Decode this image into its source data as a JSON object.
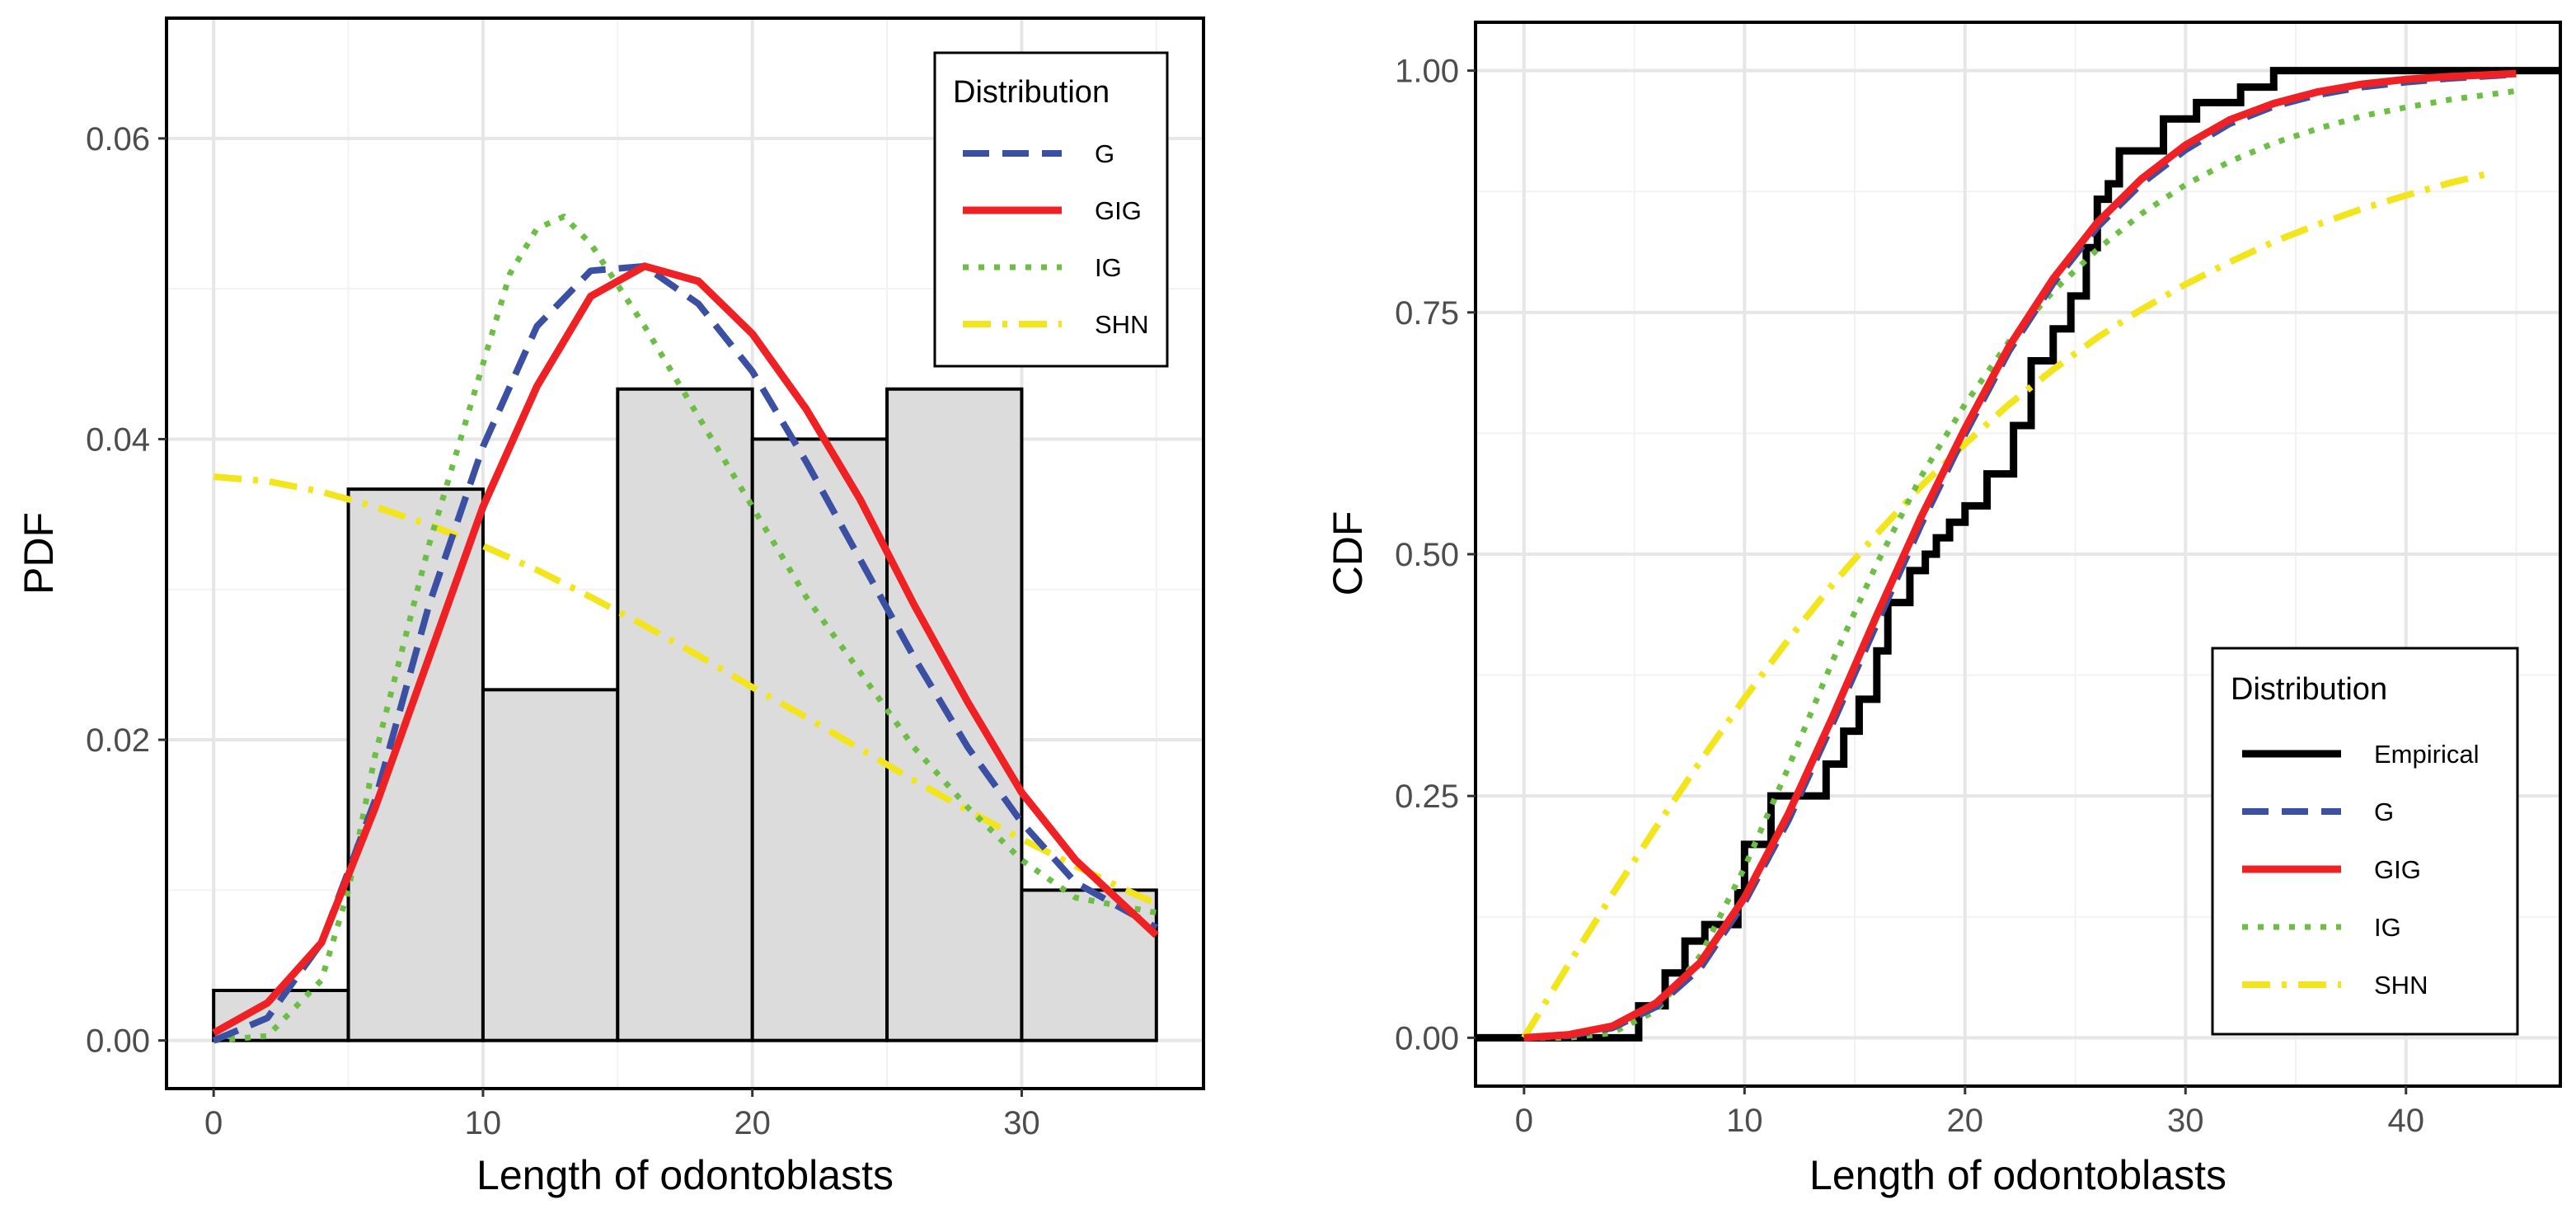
{
  "colors": {
    "G": "#3B4FA3",
    "GIG": "#EE2124",
    "IG": "#6DBE45",
    "SHN": "#F2E51E",
    "Empirical": "#000000",
    "histogram_fill": "#DCDCDC",
    "histogram_stroke": "#000000"
  },
  "chart_data": [
    {
      "type": "histogram_with_density",
      "xlabel": "Length of odontoblasts",
      "ylabel": "PDF",
      "xlim": [
        -1.75,
        36.75
      ],
      "ylim": [
        -0.0032,
        0.068
      ],
      "x_ticks": [
        0,
        10,
        20,
        30
      ],
      "y_ticks": [
        0.0,
        0.02,
        0.04,
        0.06
      ],
      "y_tick_labels": [
        "0.00",
        "0.02",
        "0.04",
        "0.06"
      ],
      "grid": true,
      "histogram": {
        "bin_edges": [
          0,
          5,
          10,
          15,
          20,
          25,
          30,
          35
        ],
        "heights": [
          0.00333,
          0.03667,
          0.02333,
          0.04333,
          0.04,
          0.04333,
          0.01
        ]
      },
      "legend": {
        "title": "Distribution",
        "position": "top-right",
        "entries": [
          "G",
          "GIG",
          "IG",
          "SHN"
        ]
      },
      "series": [
        {
          "name": "G",
          "style": "dashed",
          "x": [
            0,
            2,
            4,
            6,
            8,
            10,
            12,
            14,
            16,
            18,
            20,
            22,
            24,
            26,
            28,
            30,
            32,
            35
          ],
          "values": [
            0.0,
            0.0015,
            0.0065,
            0.016,
            0.029,
            0.0395,
            0.0475,
            0.0512,
            0.0515,
            0.049,
            0.0445,
            0.0385,
            0.032,
            0.0255,
            0.0195,
            0.0145,
            0.0105,
            0.0075
          ]
        },
        {
          "name": "GIG",
          "style": "solid",
          "x": [
            0,
            2,
            4,
            6,
            8,
            10,
            12,
            14,
            16,
            18,
            20,
            22,
            24,
            26,
            28,
            30,
            32,
            35
          ],
          "values": [
            0.0005,
            0.0025,
            0.0065,
            0.0155,
            0.0255,
            0.0355,
            0.0435,
            0.0495,
            0.0515,
            0.0505,
            0.047,
            0.042,
            0.036,
            0.029,
            0.0225,
            0.0165,
            0.012,
            0.007
          ]
        },
        {
          "name": "IG",
          "style": "dotted",
          "x": [
            0,
            2,
            4,
            5,
            6,
            8,
            10,
            11,
            12,
            13,
            14,
            16,
            18,
            20,
            22,
            24,
            26,
            28,
            30,
            32,
            35
          ],
          "values": [
            0.0,
            0.0003,
            0.004,
            0.01,
            0.019,
            0.033,
            0.045,
            0.051,
            0.054,
            0.0548,
            0.053,
            0.0475,
            0.0415,
            0.0355,
            0.0295,
            0.0245,
            0.0195,
            0.0155,
            0.012,
            0.0095,
            0.0085
          ]
        },
        {
          "name": "SHN",
          "style": "dotdash",
          "x": [
            0,
            2,
            4,
            6,
            8,
            10,
            12,
            14,
            16,
            18,
            20,
            22,
            24,
            26,
            28,
            30,
            32,
            34,
            35
          ],
          "values": [
            0.0375,
            0.0372,
            0.0365,
            0.0355,
            0.0343,
            0.0329,
            0.0313,
            0.0295,
            0.0276,
            0.0256,
            0.0235,
            0.0215,
            0.0194,
            0.0173,
            0.0153,
            0.0134,
            0.0116,
            0.0099,
            0.0091
          ]
        }
      ]
    },
    {
      "type": "line",
      "xlabel": "Length of odontoblasts",
      "ylabel": "CDF",
      "xlim": [
        -2.2,
        47.0
      ],
      "ylim": [
        -0.05,
        1.05
      ],
      "x_ticks": [
        0,
        10,
        20,
        30,
        40
      ],
      "y_ticks": [
        0.0,
        0.25,
        0.5,
        0.75,
        1.0
      ],
      "y_tick_labels": [
        "0.00",
        "0.25",
        "0.50",
        "0.75",
        "1.00"
      ],
      "grid": true,
      "legend": {
        "title": "Distribution",
        "position": "bottom-right",
        "entries": [
          "Empirical",
          "G",
          "GIG",
          "IG",
          "SHN"
        ]
      },
      "empirical_steps": {
        "x": [
          4.2,
          5.2,
          6.4,
          7.3,
          8.2,
          9.7,
          10.0,
          11.2,
          12.5,
          13.7,
          14.5,
          15.2,
          16.0,
          16.5,
          17.5,
          18.2,
          18.7,
          19.3,
          20.0,
          21.0,
          22.2,
          23.0,
          24.0,
          24.8,
          25.5,
          26.0,
          26.5,
          27.0,
          29.0,
          30.5,
          32.5,
          34.0,
          47.0
        ],
        "values": [
          0.0,
          0.033,
          0.067,
          0.1,
          0.117,
          0.15,
          0.2,
          0.25,
          0.25,
          0.283,
          0.317,
          0.35,
          0.4,
          0.45,
          0.483,
          0.5,
          0.517,
          0.533,
          0.55,
          0.583,
          0.633,
          0.7,
          0.733,
          0.767,
          0.817,
          0.867,
          0.883,
          0.917,
          0.95,
          0.967,
          0.983,
          1.0,
          1.0
        ]
      },
      "series": [
        {
          "name": "G",
          "style": "dashed",
          "x": [
            0,
            2,
            4,
            6,
            8,
            10,
            12,
            14,
            16,
            18,
            20,
            22,
            24,
            26,
            28,
            30,
            32,
            34,
            36,
            38,
            40,
            42,
            45
          ],
          "values": [
            0.0,
            0.002,
            0.01,
            0.032,
            0.072,
            0.14,
            0.225,
            0.325,
            0.428,
            0.53,
            0.624,
            0.71,
            0.78,
            0.838,
            0.883,
            0.918,
            0.945,
            0.963,
            0.975,
            0.983,
            0.988,
            0.992,
            0.996
          ]
        },
        {
          "name": "GIG",
          "style": "solid",
          "x": [
            0,
            2,
            4,
            6,
            8,
            10,
            12,
            14,
            16,
            18,
            20,
            22,
            24,
            26,
            28,
            30,
            32,
            34,
            36,
            38,
            40,
            42,
            45
          ],
          "values": [
            0.0,
            0.003,
            0.012,
            0.036,
            0.078,
            0.145,
            0.232,
            0.332,
            0.437,
            0.538,
            0.63,
            0.715,
            0.785,
            0.843,
            0.888,
            0.923,
            0.949,
            0.966,
            0.978,
            0.986,
            0.991,
            0.994,
            0.997
          ]
        },
        {
          "name": "IG",
          "style": "dotted",
          "x": [
            0,
            2,
            4,
            6,
            8,
            10,
            12,
            14,
            16,
            18,
            20,
            22,
            24,
            26,
            28,
            30,
            32,
            34,
            36,
            38,
            40,
            42,
            45
          ],
          "values": [
            0.0,
            0.0,
            0.005,
            0.028,
            0.085,
            0.176,
            0.28,
            0.39,
            0.49,
            0.58,
            0.655,
            0.72,
            0.772,
            0.815,
            0.852,
            0.882,
            0.906,
            0.925,
            0.94,
            0.953,
            0.962,
            0.97,
            0.979
          ]
        },
        {
          "name": "SHN",
          "style": "dotdash",
          "x": [
            0,
            2,
            4,
            6,
            8,
            10,
            12,
            14,
            16,
            18,
            20,
            22,
            24,
            26,
            28,
            30,
            32,
            34,
            36,
            38,
            40,
            42,
            44
          ],
          "values": [
            0.0,
            0.075,
            0.148,
            0.218,
            0.286,
            0.351,
            0.412,
            0.469,
            0.521,
            0.57,
            0.614,
            0.655,
            0.691,
            0.724,
            0.753,
            0.779,
            0.802,
            0.823,
            0.841,
            0.857,
            0.871,
            0.884,
            0.895
          ]
        }
      ]
    }
  ]
}
